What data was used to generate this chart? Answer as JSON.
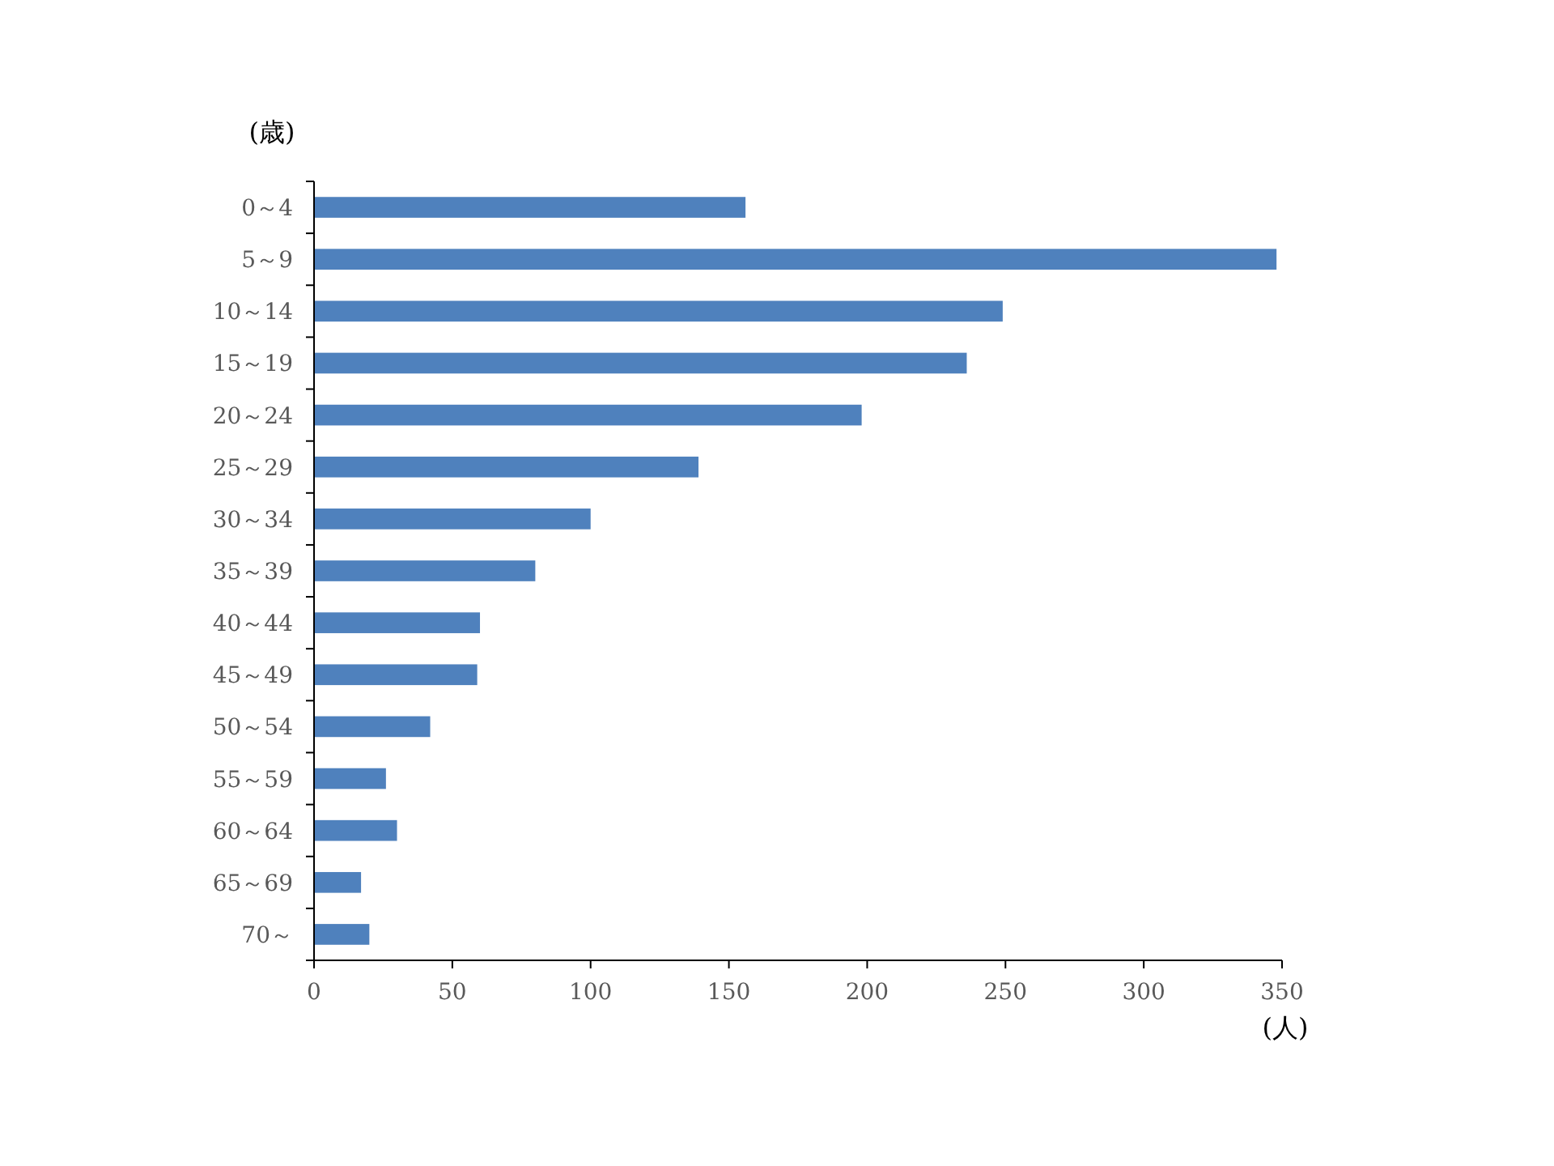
{
  "chart_data": {
    "type": "bar",
    "orientation": "horizontal",
    "ylabel": "(歳)",
    "xlabel": "(人)",
    "categories": [
      "0～4",
      "5～9",
      "10～14",
      "15～19",
      "20～24",
      "25～29",
      "30～34",
      "35～39",
      "40～44",
      "45～49",
      "50～54",
      "55～59",
      "60～64",
      "65～69",
      "70～"
    ],
    "values": [
      156,
      348,
      249,
      236,
      198,
      139,
      100,
      80,
      60,
      59,
      42,
      26,
      30,
      17,
      20
    ],
    "color": "#4f81bd",
    "xlim": [
      0,
      350
    ],
    "xticks": [
      0,
      50,
      100,
      150,
      200,
      250,
      300,
      350
    ],
    "grid": false
  }
}
